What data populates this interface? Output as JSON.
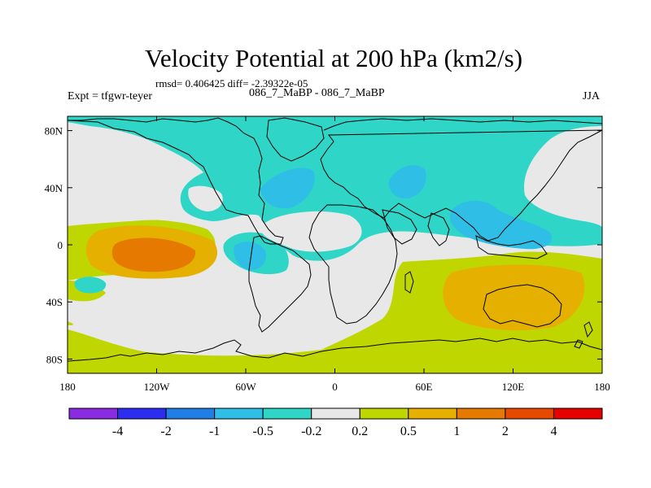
{
  "title": "Velocity Potential at 200 hPa (km2/s)",
  "stats": "rmsd= 0.406425 diff= -2.39322e-05",
  "expt_label": "Expt = tfgwr-teyer",
  "expt_name": "086_7_MaBP - 086_7_MaBP",
  "season": "JJA",
  "map": {
    "lon_range": [
      -180,
      180
    ],
    "lat_range": [
      -90,
      90
    ],
    "x_ticks": [
      {
        "label": "180",
        "lon": -180
      },
      {
        "label": "120W",
        "lon": -120
      },
      {
        "label": "60W",
        "lon": -60
      },
      {
        "label": "0",
        "lon": 0
      },
      {
        "label": "60E",
        "lon": 60
      },
      {
        "label": "120E",
        "lon": 120
      },
      {
        "label": "180",
        "lon": 180
      }
    ],
    "y_ticks": [
      {
        "label": "80N",
        "lat": 80
      },
      {
        "label": "40N",
        "lat": 40
      },
      {
        "label": "0",
        "lat": 0
      },
      {
        "label": "40S",
        "lat": -40
      },
      {
        "label": "80S",
        "lat": -80
      }
    ]
  },
  "colorbar": {
    "colors": [
      "#8a2be2",
      "#2d2df0",
      "#1f7fe6",
      "#2fbfe6",
      "#2fd6c8",
      "#e8e8e8",
      "#bfd600",
      "#e6b000",
      "#e67a00",
      "#e64a00",
      "#e60000"
    ],
    "labels": [
      "-4",
      "-2",
      "-1",
      "-0.5",
      "-0.2",
      "0.2",
      "0.5",
      "1",
      "2",
      "4"
    ]
  }
}
